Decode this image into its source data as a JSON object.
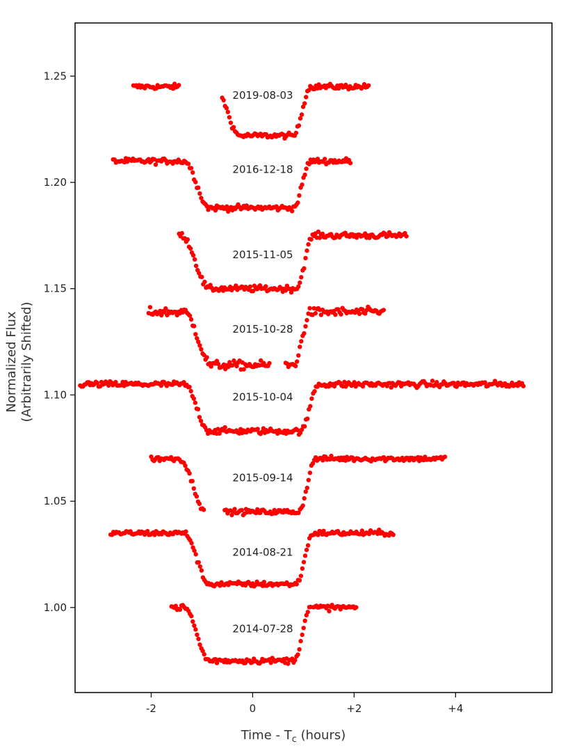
{
  "chart_data": {
    "type": "scatter",
    "title": "",
    "xlabel": "Time - T",
    "xlabel_subscript": "c",
    "xlabel_suffix": " (hours)",
    "ylabel_line1": "Normalized Flux",
    "ylabel_line2": "(Arbitrarily Shifted)",
    "xlim": [
      -3.5,
      5.9
    ],
    "ylim": [
      0.96,
      1.275
    ],
    "x_ticks": [
      -2,
      0,
      2,
      4
    ],
    "x_tick_labels": [
      "-2",
      "0",
      "+2",
      "+4"
    ],
    "y_ticks": [
      1.0,
      1.05,
      1.1,
      1.15,
      1.2,
      1.25
    ],
    "y_tick_labels": [
      "1.00",
      "1.05",
      "1.10",
      "1.15",
      "1.20",
      "1.25"
    ],
    "marker_color": "#ff0000",
    "grid": false,
    "series": [
      {
        "name": "2019-08-03",
        "label_x": 0.2,
        "label_y": 1.241,
        "baseline": 1.245,
        "depth": 0.023,
        "t1": -0.75,
        "t2": 1.15,
        "ramp_in": 0.5,
        "ramp_out": 0.35,
        "segments": [
          [
            -2.35,
            -1.45
          ],
          [
            -0.6,
            2.3
          ]
        ],
        "noise": 0.0012
      },
      {
        "name": "2016-12-18",
        "label_x": 0.2,
        "label_y": 1.206,
        "baseline": 1.21,
        "depth": 0.022,
        "t1": -1.35,
        "t2": 1.15,
        "ramp_in": 0.5,
        "ramp_out": 0.35,
        "segments": [
          [
            -2.75,
            1.95
          ]
        ],
        "noise": 0.0013
      },
      {
        "name": "2015-11-05",
        "label_x": 0.2,
        "label_y": 1.166,
        "baseline": 1.175,
        "depth": 0.025,
        "t1": -1.4,
        "t2": 1.2,
        "ramp_in": 0.55,
        "ramp_out": 0.35,
        "segments": [
          [
            -1.45,
            3.05
          ]
        ],
        "noise": 0.0014
      },
      {
        "name": "2015-10-28",
        "label_x": 0.2,
        "label_y": 1.131,
        "baseline": 1.139,
        "depth": 0.025,
        "t1": -1.35,
        "t2": 1.15,
        "ramp_in": 0.55,
        "ramp_out": 0.35,
        "segments": [
          [
            -2.05,
            0.35
          ],
          [
            0.65,
            2.6
          ]
        ],
        "noise": 0.002
      },
      {
        "name": "2015-10-04",
        "label_x": 0.2,
        "label_y": 1.099,
        "baseline": 1.105,
        "depth": 0.022,
        "t1": -1.35,
        "t2": 1.3,
        "ramp_in": 0.5,
        "ramp_out": 0.35,
        "segments": [
          [
            -3.4,
            5.35
          ]
        ],
        "noise": 0.0014
      },
      {
        "name": "2015-09-14",
        "label_x": 0.2,
        "label_y": 1.061,
        "baseline": 1.07,
        "depth": 0.025,
        "t1": -1.45,
        "t2": 1.25,
        "ramp_in": 0.55,
        "ramp_out": 0.35,
        "segments": [
          [
            -2.0,
            -0.95
          ],
          [
            -0.55,
            3.8
          ]
        ],
        "noise": 0.0012
      },
      {
        "name": "2014-08-21",
        "label_x": 0.2,
        "label_y": 1.026,
        "baseline": 1.035,
        "depth": 0.024,
        "t1": -1.35,
        "t2": 1.2,
        "ramp_in": 0.5,
        "ramp_out": 0.35,
        "segments": [
          [
            -2.8,
            2.8
          ]
        ],
        "noise": 0.0012
      },
      {
        "name": "2014-07-28",
        "label_x": 0.2,
        "label_y": 0.99,
        "baseline": 1.0,
        "depth": 0.025,
        "t1": -1.35,
        "t2": 1.15,
        "ramp_in": 0.5,
        "ramp_out": 0.35,
        "segments": [
          [
            -1.6,
            1.15
          ],
          [
            1.2,
            2.05
          ]
        ],
        "noise": 0.0013
      }
    ]
  }
}
